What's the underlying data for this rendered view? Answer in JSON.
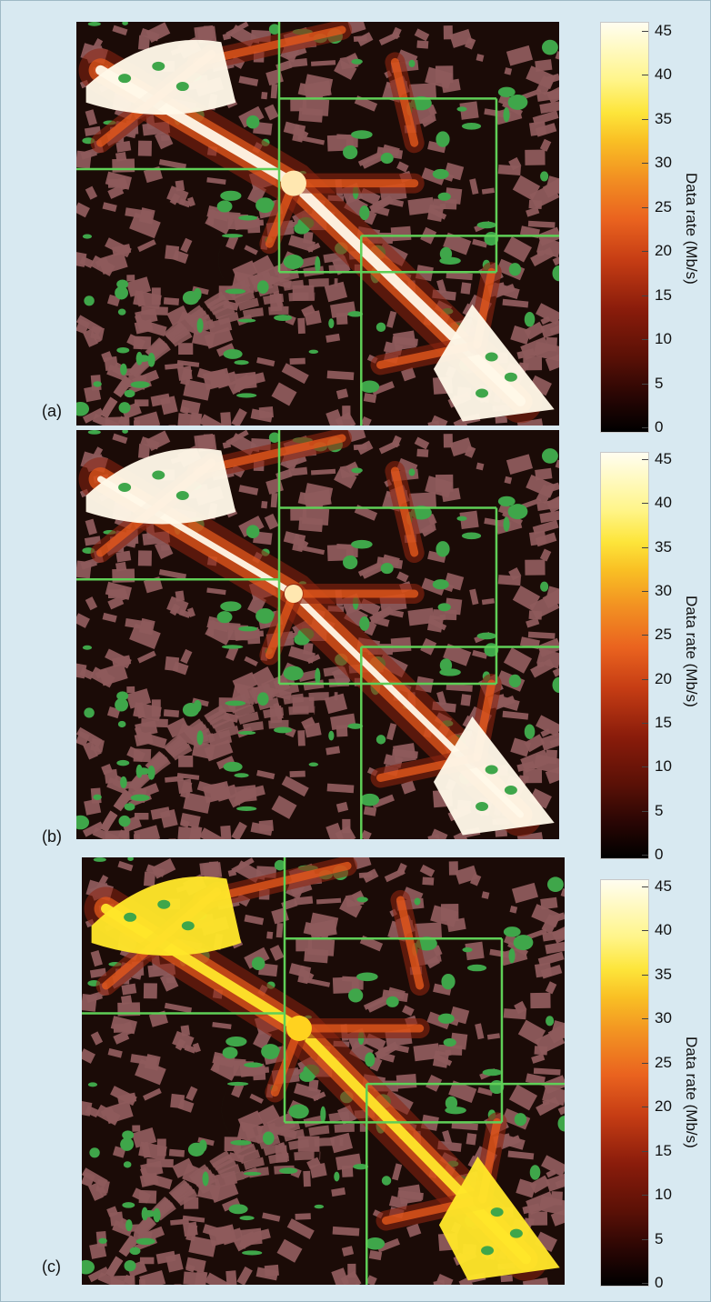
{
  "figure": {
    "panels": [
      {
        "label": "(a)"
      },
      {
        "label": "(b)"
      },
      {
        "label": "(c)"
      }
    ],
    "colorbar": {
      "title": "Data rate (Mb/s)",
      "ticks": [
        "45",
        "40",
        "35",
        "30",
        "25",
        "20",
        "15",
        "10",
        "5",
        "0"
      ],
      "min": 0,
      "max": 45
    },
    "map_colors": {
      "ground": "#1b0b07",
      "building": "#8e5b5c",
      "vegetation": "#3fa64a",
      "grid_lines": "#5fcf57",
      "high_rate_ab": "#fff8e8",
      "high_rate_c": "#ffe62a",
      "mid_rate": "#e2571b",
      "low_rate": "#8c2410"
    }
  },
  "chart_data": {
    "type": "heatmap",
    "title": "",
    "xlabel": "",
    "ylabel": "",
    "colorbar_label": "Data rate (Mb/s)",
    "colorbar_range": [
      0,
      45
    ],
    "colorbar_ticks": [
      0,
      5,
      10,
      15,
      20,
      25,
      30,
      35,
      40,
      45
    ],
    "panels": [
      "(a)",
      "(b)",
      "(c)"
    ],
    "grid": false
  }
}
